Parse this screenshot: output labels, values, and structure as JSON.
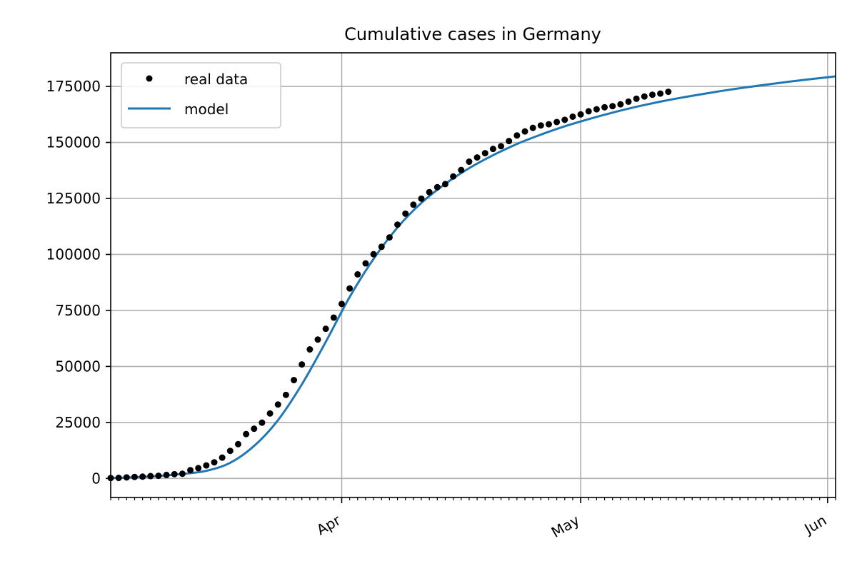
{
  "chart_data": {
    "type": "line",
    "title": "Cumulative cases in Germany",
    "xlabel": "",
    "ylabel": "",
    "x_axis": {
      "type": "date",
      "range": [
        "2020-03-03",
        "2020-06-02"
      ],
      "major_ticks": [
        {
          "date": "2020-04-01",
          "label": "Apr"
        },
        {
          "date": "2020-05-01",
          "label": "May"
        },
        {
          "date": "2020-06-01",
          "label": "Jun"
        }
      ],
      "minor_ticks": "daily"
    },
    "y_axis": {
      "range": [
        -8500,
        190000
      ],
      "ticks": [
        0,
        25000,
        50000,
        75000,
        100000,
        125000,
        150000,
        175000
      ]
    },
    "grid": true,
    "legend": {
      "position": "upper left",
      "entries": [
        "real data",
        "model"
      ]
    },
    "series": [
      {
        "name": "real data",
        "style": "dots",
        "color": "#000000",
        "points": [
          [
            "2020-03-03",
            200
          ],
          [
            "2020-03-04",
            260
          ],
          [
            "2020-03-05",
            480
          ],
          [
            "2020-03-06",
            670
          ],
          [
            "2020-03-07",
            800
          ],
          [
            "2020-03-08",
            1040
          ],
          [
            "2020-03-09",
            1180
          ],
          [
            "2020-03-10",
            1560
          ],
          [
            "2020-03-11",
            1900
          ],
          [
            "2020-03-12",
            2080
          ],
          [
            "2020-03-13",
            3700
          ],
          [
            "2020-03-14",
            4600
          ],
          [
            "2020-03-15",
            5800
          ],
          [
            "2020-03-16",
            7200
          ],
          [
            "2020-03-17",
            9300
          ],
          [
            "2020-03-18",
            12300
          ],
          [
            "2020-03-19",
            15300
          ],
          [
            "2020-03-20",
            19800
          ],
          [
            "2020-03-21",
            22200
          ],
          [
            "2020-03-22",
            24900
          ],
          [
            "2020-03-23",
            29000
          ],
          [
            "2020-03-24",
            33000
          ],
          [
            "2020-03-25",
            37300
          ],
          [
            "2020-03-26",
            43900
          ],
          [
            "2020-03-27",
            50900
          ],
          [
            "2020-03-28",
            57600
          ],
          [
            "2020-03-29",
            62000
          ],
          [
            "2020-03-30",
            66800
          ],
          [
            "2020-03-31",
            71800
          ],
          [
            "2020-04-01",
            77900
          ],
          [
            "2020-04-02",
            84800
          ],
          [
            "2020-04-03",
            91100
          ],
          [
            "2020-04-04",
            96000
          ],
          [
            "2020-04-05",
            100100
          ],
          [
            "2020-04-06",
            103400
          ],
          [
            "2020-04-07",
            107600
          ],
          [
            "2020-04-08",
            113300
          ],
          [
            "2020-04-09",
            118200
          ],
          [
            "2020-04-10",
            122200
          ],
          [
            "2020-04-11",
            124900
          ],
          [
            "2020-04-12",
            127800
          ],
          [
            "2020-04-13",
            130000
          ],
          [
            "2020-04-14",
            131400
          ],
          [
            "2020-04-15",
            134800
          ],
          [
            "2020-04-16",
            137700
          ],
          [
            "2020-04-17",
            141400
          ],
          [
            "2020-04-18",
            143300
          ],
          [
            "2020-04-19",
            145200
          ],
          [
            "2020-04-20",
            147100
          ],
          [
            "2020-04-21",
            148300
          ],
          [
            "2020-04-22",
            150600
          ],
          [
            "2020-04-23",
            153100
          ],
          [
            "2020-04-24",
            154900
          ],
          [
            "2020-04-25",
            156500
          ],
          [
            "2020-04-26",
            157600
          ],
          [
            "2020-04-27",
            158100
          ],
          [
            "2020-04-28",
            159100
          ],
          [
            "2020-04-29",
            160100
          ],
          [
            "2020-04-30",
            161500
          ],
          [
            "2020-05-01",
            162500
          ],
          [
            "2020-05-02",
            163900
          ],
          [
            "2020-05-03",
            164800
          ],
          [
            "2020-05-04",
            165700
          ],
          [
            "2020-05-05",
            166200
          ],
          [
            "2020-05-06",
            167000
          ],
          [
            "2020-05-07",
            168200
          ],
          [
            "2020-05-08",
            169500
          ],
          [
            "2020-05-09",
            170500
          ],
          [
            "2020-05-10",
            171300
          ],
          [
            "2020-05-11",
            171800
          ],
          [
            "2020-05-12",
            172600
          ]
        ]
      },
      {
        "name": "model",
        "style": "line",
        "color": "#1f77b4",
        "points": [
          [
            "2020-03-03",
            200
          ],
          [
            "2020-03-06",
            550
          ],
          [
            "2020-03-09",
            1100
          ],
          [
            "2020-03-12",
            2000
          ],
          [
            "2020-03-15",
            3400
          ],
          [
            "2020-03-18",
            7000
          ],
          [
            "2020-03-21",
            14500
          ],
          [
            "2020-03-24",
            26000
          ],
          [
            "2020-03-27",
            42000
          ],
          [
            "2020-03-30",
            61000
          ],
          [
            "2020-04-02",
            81000
          ],
          [
            "2020-04-05",
            98000
          ],
          [
            "2020-04-08",
            112000
          ],
          [
            "2020-04-11",
            123000
          ],
          [
            "2020-04-14",
            131500
          ],
          [
            "2020-04-17",
            138500
          ],
          [
            "2020-04-20",
            144300
          ],
          [
            "2020-04-23",
            149300
          ],
          [
            "2020-04-26",
            153500
          ],
          [
            "2020-04-29",
            157200
          ],
          [
            "2020-05-02",
            160400
          ],
          [
            "2020-05-05",
            163300
          ],
          [
            "2020-05-08",
            165900
          ],
          [
            "2020-05-11",
            168200
          ],
          [
            "2020-05-14",
            170200
          ],
          [
            "2020-05-17",
            172000
          ],
          [
            "2020-05-20",
            173700
          ],
          [
            "2020-05-23",
            175200
          ],
          [
            "2020-05-26",
            176600
          ],
          [
            "2020-05-29",
            177900
          ],
          [
            "2020-06-01",
            179100
          ],
          [
            "2020-06-02",
            179500
          ]
        ]
      }
    ]
  }
}
